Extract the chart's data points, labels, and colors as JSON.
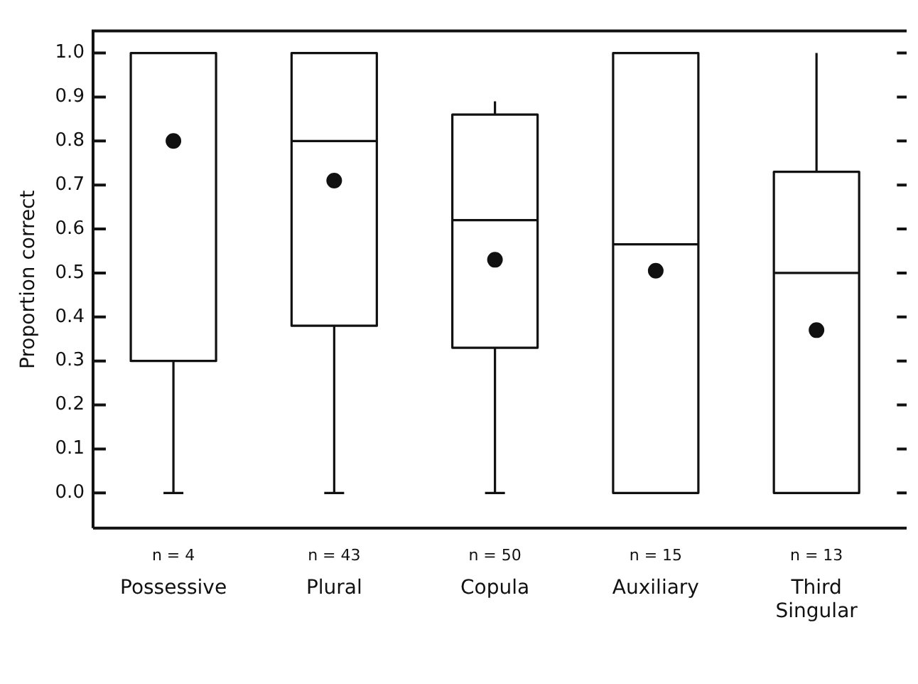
{
  "chart_data": {
    "type": "box",
    "ylabel": "Proportion correct",
    "categories": [
      "Possessive",
      "Plural",
      "Copula",
      "Auxiliary",
      "Third Singular"
    ],
    "boxes": [
      {
        "low": 0,
        "q1": 0.3,
        "median": 1.0,
        "q3": 1.0,
        "high": 1.0
      },
      {
        "low": 0,
        "q1": 0.38,
        "median": 0.8,
        "q3": 1.0,
        "high": 1.0
      },
      {
        "low": 0,
        "q1": 0.33,
        "median": 0.62,
        "q3": 0.86,
        "high": 0.89
      },
      {
        "low": 0,
        "q1": 0,
        "median": 0.565,
        "q3": 1.0,
        "high": 1.0
      },
      {
        "low": 0,
        "q1": 0,
        "median": 0.5,
        "q3": 0.73,
        "high": 1.0
      }
    ],
    "series": [
      {
        "type": "scatter",
        "x": [
          "Possessive",
          "Plural",
          "Copula",
          "Auxiliary",
          "Third Singular"
        ],
        "values": [
          0.8,
          0.71,
          0.53,
          0.505,
          0.37
        ],
        "color": "#111111"
      }
    ],
    "color": "#111111",
    "marker": "circle",
    "ylim": [
      -0.08,
      1.05
    ],
    "yticks": [
      {
        "value": 0,
        "label": "0.0"
      },
      {
        "value": 0.1,
        "label": "0.1"
      },
      {
        "value": 0.2,
        "label": "0.2"
      },
      {
        "value": 0.3,
        "label": "0.3"
      },
      {
        "value": 0.4,
        "label": "0.4"
      },
      {
        "value": 0.5,
        "label": "0.5"
      },
      {
        "value": 0.6,
        "label": "0.6"
      },
      {
        "value": 0.7,
        "label": "0.7"
      },
      {
        "value": 0.8,
        "label": "0.8"
      },
      {
        "value": 0.9,
        "label": "0.9"
      },
      {
        "value": 1.0,
        "label": "1.0"
      }
    ],
    "annotations": [
      "n = 4",
      "n = 43",
      "n = 50",
      "n = 15",
      "n = 13"
    ],
    "legend": false,
    "grid": false
  }
}
